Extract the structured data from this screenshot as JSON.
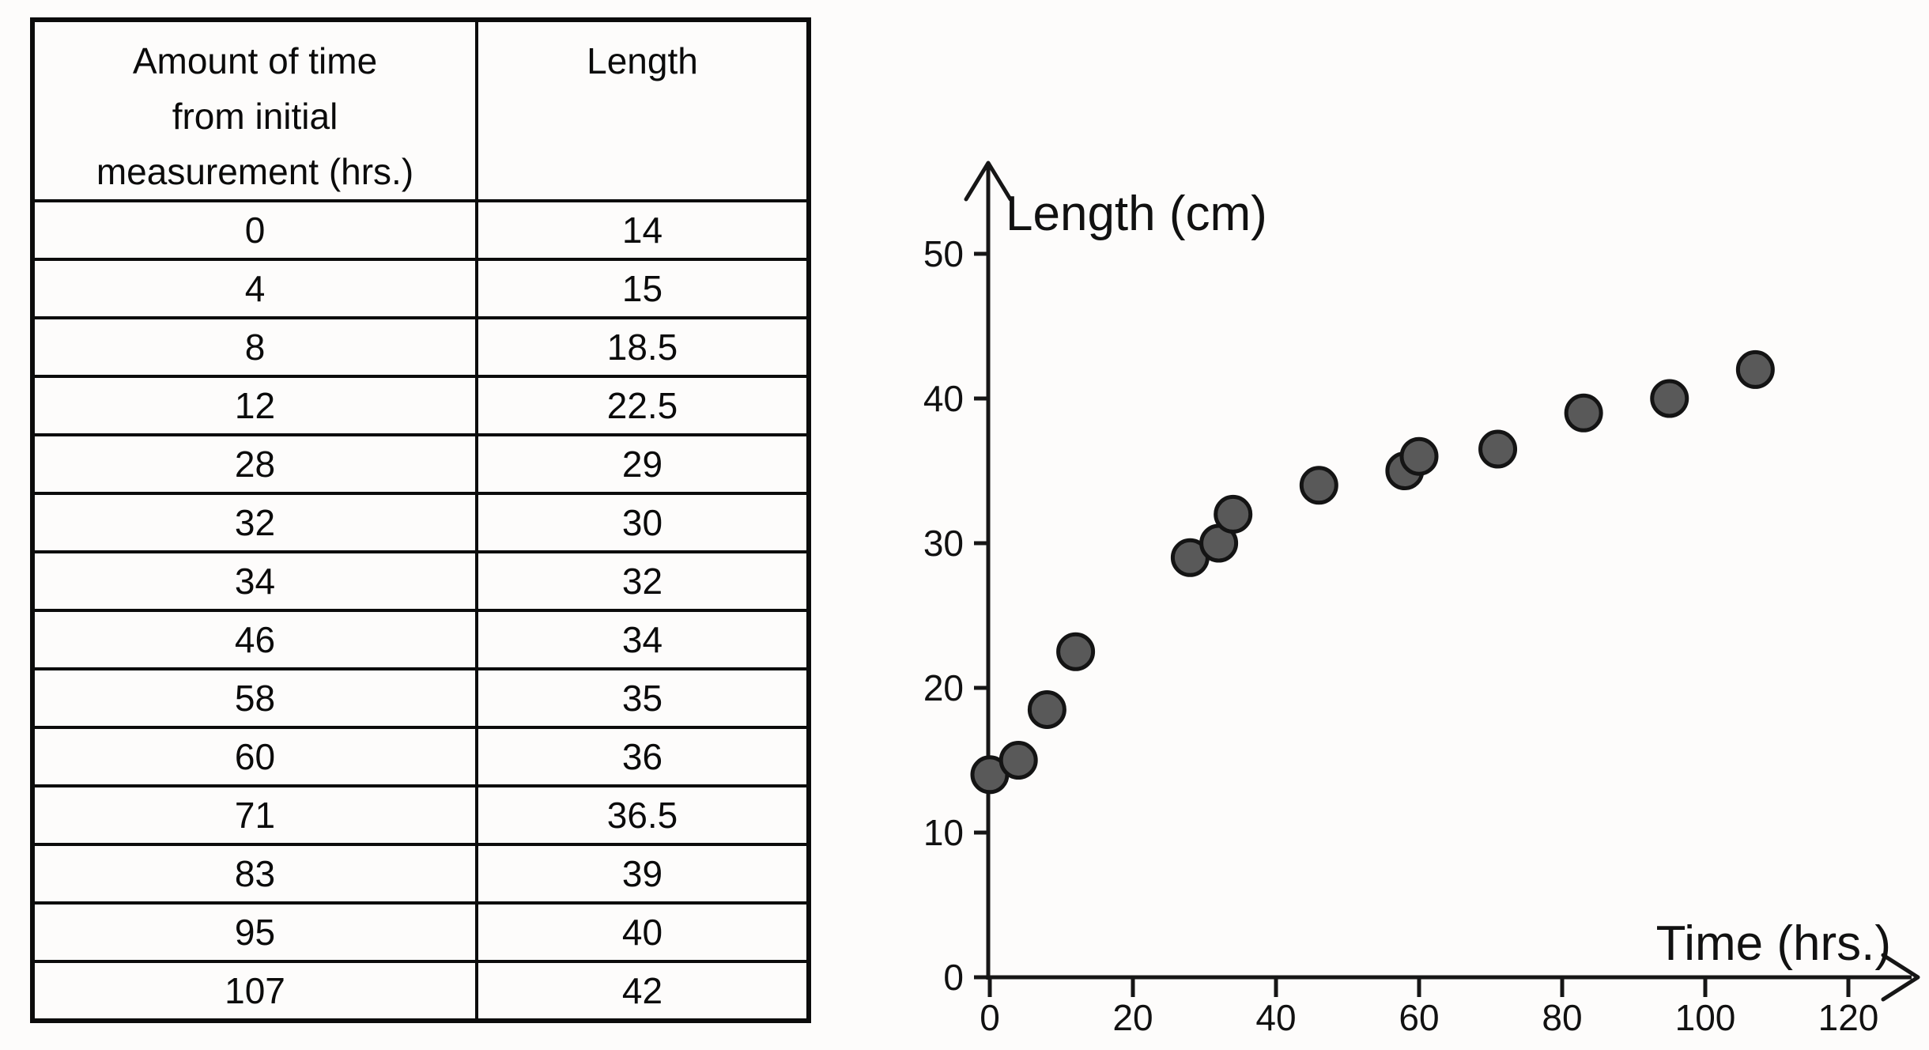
{
  "table": {
    "headers": {
      "time": "Amount of time\nfrom initial\nmeasurement (hrs.)",
      "length": "Length"
    },
    "rows": [
      {
        "time": "0",
        "length": "14"
      },
      {
        "time": "4",
        "length": "15"
      },
      {
        "time": "8",
        "length": "18.5"
      },
      {
        "time": "12",
        "length": "22.5"
      },
      {
        "time": "28",
        "length": "29"
      },
      {
        "time": "32",
        "length": "30"
      },
      {
        "time": "34",
        "length": "32"
      },
      {
        "time": "46",
        "length": "34"
      },
      {
        "time": "58",
        "length": "35"
      },
      {
        "time": "60",
        "length": "36"
      },
      {
        "time": "71",
        "length": "36.5"
      },
      {
        "time": "83",
        "length": "39"
      },
      {
        "time": "95",
        "length": "40"
      },
      {
        "time": "107",
        "length": "42"
      }
    ]
  },
  "chart_data": {
    "type": "scatter",
    "title": "",
    "xlabel": "Time (hrs.)",
    "ylabel": "Length (cm)",
    "x": [
      0,
      4,
      8,
      12,
      28,
      32,
      34,
      46,
      58,
      60,
      71,
      83,
      95,
      107
    ],
    "y": [
      14,
      15,
      18.5,
      22.5,
      29,
      30,
      32,
      34,
      35,
      36,
      36.5,
      39,
      40,
      42
    ],
    "xlim": [
      0,
      120
    ],
    "ylim": [
      0,
      50
    ],
    "xticks": [
      0,
      20,
      40,
      60,
      80,
      100,
      120
    ],
    "yticks": [
      0,
      10,
      20,
      30,
      40,
      50
    ],
    "grid": false,
    "legend": false,
    "point_color": "#595959",
    "point_stroke": "#141414",
    "axis_color": "#161616"
  }
}
